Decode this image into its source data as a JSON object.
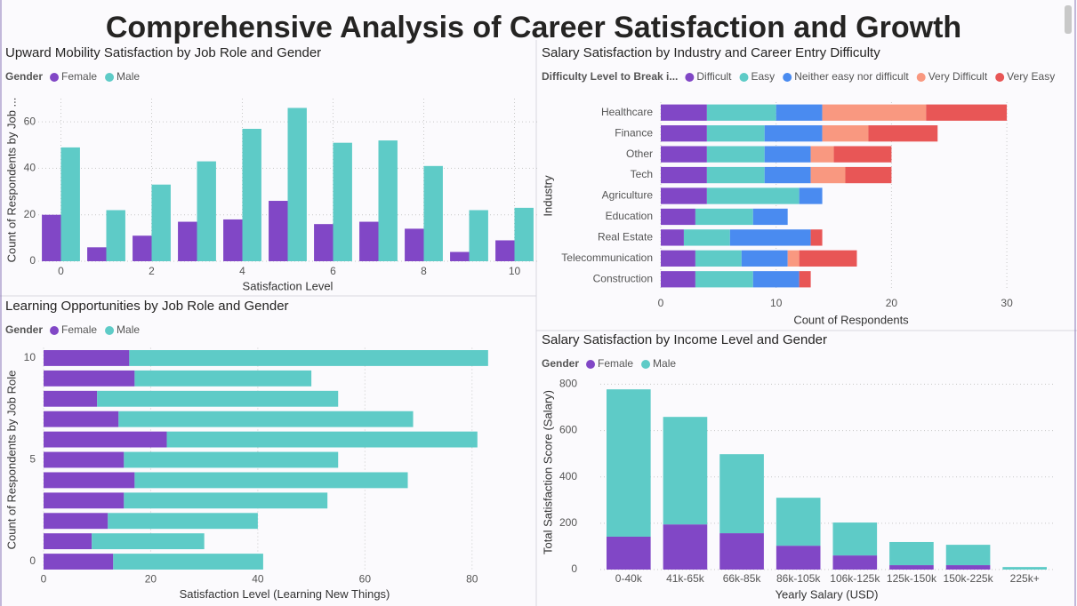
{
  "title": "Comprehensive Analysis of Career Satisfaction and Growth",
  "chart_data": [
    {
      "type": "bar",
      "title": "Upward Mobility Satisfaction by Job Role and Gender",
      "legend_title": "Gender",
      "x": [
        0,
        1,
        2,
        3,
        4,
        5,
        6,
        7,
        8,
        9,
        10
      ],
      "series": [
        {
          "name": "Female",
          "color": "#8147c6",
          "values": [
            20,
            6,
            11,
            17,
            18,
            26,
            16,
            17,
            14,
            4,
            9
          ]
        },
        {
          "name": "Male",
          "color": "#5ecbc7",
          "values": [
            49,
            22,
            33,
            43,
            57,
            66,
            51,
            52,
            41,
            22,
            23
          ]
        }
      ],
      "xlim": [
        -0.5,
        10.5
      ],
      "xticks": [
        0,
        2,
        4,
        6,
        8,
        10
      ],
      "ylim": [
        0,
        70
      ],
      "yticks": [
        0,
        20,
        40,
        60
      ],
      "x_label": "Satisfaction Level",
      "y_label": "Count of Respondents by Job ...",
      "grid": true,
      "xgrid": true
    },
    {
      "type": "bar",
      "orientation": "horizontal",
      "stacked": true,
      "title": "Salary Satisfaction by Industry and Career Entry Difficulty",
      "legend_title": "Difficulty Level to Break i...",
      "categories": [
        "Healthcare",
        "Finance",
        "Other",
        "Tech",
        "Agriculture",
        "Education",
        "Real Estate",
        "Telecommunication",
        "Construction"
      ],
      "series": [
        {
          "name": "Difficult",
          "color": "#8147c6",
          "values": [
            4,
            4,
            4,
            4,
            4,
            3,
            2,
            3,
            3
          ]
        },
        {
          "name": "Easy",
          "color": "#5ecbc7",
          "values": [
            6,
            5,
            5,
            5,
            8,
            5,
            4,
            4,
            5
          ]
        },
        {
          "name": "Neither easy nor difficult",
          "color": "#4a8bf0",
          "values": [
            4,
            5,
            4,
            4,
            2,
            3,
            7,
            4,
            4
          ]
        },
        {
          "name": "Very Difficult",
          "color": "#f99880",
          "values": [
            9,
            4,
            2,
            3,
            0,
            0,
            0,
            1,
            0
          ]
        },
        {
          "name": "Very Easy",
          "color": "#e85656",
          "values": [
            7,
            6,
            5,
            4,
            0,
            0,
            1,
            5,
            1
          ]
        }
      ],
      "xlim": [
        0,
        33
      ],
      "xticks": [
        0,
        10,
        20,
        30
      ],
      "x_label": "Count of Respondents",
      "y_label": "Industry",
      "grid": true
    },
    {
      "type": "bar",
      "orientation": "horizontal",
      "stacked": true,
      "title": "Learning Opportunities by Job Role and Gender",
      "legend_title": "Gender",
      "y": [
        0,
        1,
        2,
        3,
        4,
        5,
        6,
        7,
        8,
        9,
        10
      ],
      "series": [
        {
          "name": "Female",
          "color": "#8147c6",
          "values": [
            13,
            9,
            12,
            15,
            17,
            15,
            23,
            14,
            10,
            17,
            16
          ]
        },
        {
          "name": "Male",
          "color": "#5ecbc7",
          "values": [
            28,
            21,
            28,
            38,
            51,
            40,
            58,
            55,
            45,
            33,
            67
          ]
        }
      ],
      "xlim": [
        0,
        90
      ],
      "xticks": [
        0,
        20,
        40,
        60,
        80
      ],
      "ylim": [
        -0.5,
        10.5
      ],
      "yticks": [
        0,
        5,
        10
      ],
      "x_label": "Satisfaction Level (Learning New Things)",
      "y_label": "Count of Respondents by Job Role",
      "grid": true
    },
    {
      "type": "bar",
      "stacked": true,
      "title": "Salary Satisfaction by Income Level and Gender",
      "legend_title": "Gender",
      "categories": [
        "0-40k",
        "41k-65k",
        "66k-85k",
        "86k-105k",
        "106k-125k",
        "125k-150k",
        "150k-225k",
        "225k+"
      ],
      "series": [
        {
          "name": "Female",
          "color": "#8147c6",
          "values": [
            142,
            195,
            157,
            103,
            61,
            19,
            19,
            0
          ]
        },
        {
          "name": "Male",
          "color": "#5ecbc7",
          "values": [
            636,
            464,
            341,
            207,
            142,
            100,
            88,
            11
          ]
        }
      ],
      "ylim": [
        0,
        840
      ],
      "yticks": [
        0,
        200,
        400,
        600,
        800
      ],
      "x_label": "Yearly Salary (USD)",
      "y_label": "Total Satisfaction Score (Salary)",
      "grid": true
    }
  ]
}
